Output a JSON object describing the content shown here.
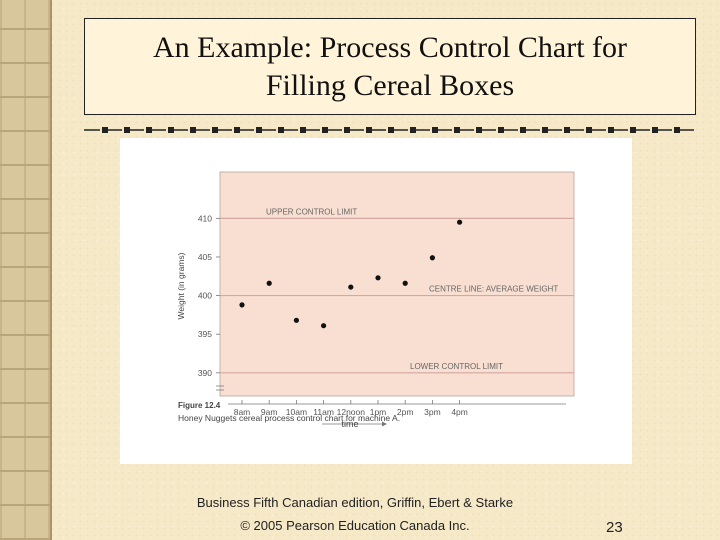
{
  "slide": {
    "title": "An Example:  Process Control Chart for\nFilling Cereal Boxes",
    "footer_line1": "Business Fifth Canadian edition,  Griffin, Ebert & Starke",
    "footer_line2": "© 2005 Pearson Education Canada Inc.",
    "page_number": "23"
  },
  "chart_data": {
    "type": "scatter",
    "categories": [
      "8am",
      "9am",
      "10am",
      "11am",
      "12noon",
      "1pm",
      "2pm",
      "3pm",
      "4pm"
    ],
    "x": [
      "8am",
      "9am",
      "10am",
      "11am",
      "12noon",
      "1pm",
      "2pm",
      "3pm",
      "4pm"
    ],
    "values": [
      398.8,
      401.6,
      396.8,
      396.1,
      401.1,
      402.3,
      401.6,
      404.9,
      409.5
    ],
    "xlabel": "time",
    "ylabel": "Weight (in grams)",
    "yticks": [
      390,
      395,
      400,
      405,
      410
    ],
    "ylim": [
      387,
      416
    ],
    "reference_lines": [
      {
        "value": 410,
        "label": "UPPER CONTROL LIMIT"
      },
      {
        "value": 400,
        "label": "CENTRE LINE: AVERAGE WEIGHT"
      },
      {
        "value": 390,
        "label": "LOWER CONTROL LIMIT"
      }
    ],
    "figure_label": "Figure 12.4",
    "caption": "Honey Nuggets cereal process control chart for machine A.",
    "colors": {
      "plot_background": "#f8dfd1",
      "reference_line": "#d2a9a0",
      "point": "#111111"
    },
    "grid": false
  }
}
